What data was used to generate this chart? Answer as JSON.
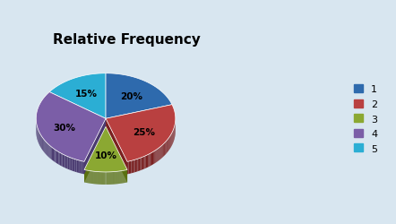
{
  "title": "Relative Frequency",
  "slices": [
    20,
    25,
    10,
    30,
    15
  ],
  "labels": [
    "20%",
    "25%",
    "10%",
    "30%",
    "15%"
  ],
  "legend_labels": [
    "1",
    "2",
    "3",
    "4",
    "5"
  ],
  "colors": [
    "#2E6AAD",
    "#B94040",
    "#8BA832",
    "#7B5EA7",
    "#2BAED4"
  ],
  "dark_colors": [
    "#1A4A80",
    "#7A2020",
    "#5A7010",
    "#4A3A70",
    "#1A7A90"
  ],
  "explode_idx": 2,
  "background_color": "#D8E6F0",
  "title_fontsize": 11,
  "startangle": 90,
  "label_color": "black"
}
